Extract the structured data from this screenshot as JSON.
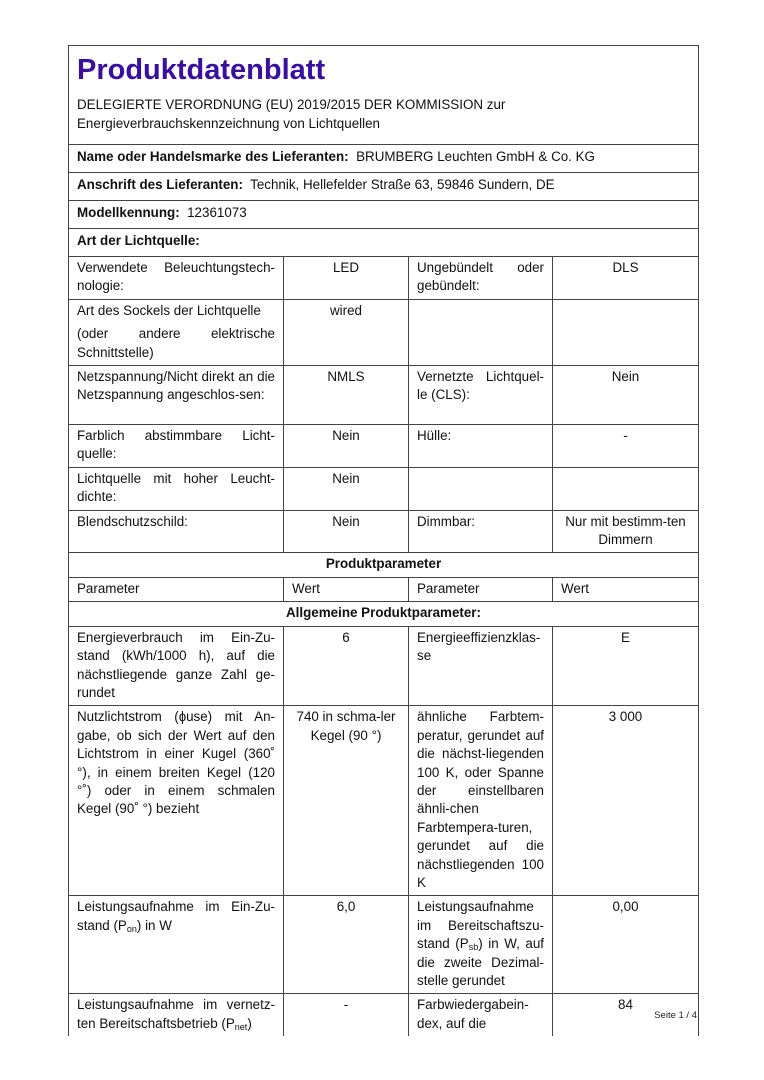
{
  "header": {
    "title": "Produktdatenblatt",
    "subtitle_line1": "DELEGIERTE VERORDNUNG (EU) 2019/2015 DER KOMMISSION zur",
    "subtitle_line2": "Energieverbrauchskennzeichnung von Lichtquellen",
    "title_color": "#3b0f9e"
  },
  "supplier": {
    "name_label": "Name oder Handelsmarke des Lieferanten:",
    "name_value": "BRUMBERG Leuchten GmbH & Co. KG",
    "address_label": "Anschrift des Lieferanten:",
    "address_value": "Technik, Hellefelder Straße 63, 59846 Sundern, DE",
    "model_label": "Modellkennung:",
    "model_value": "12361073",
    "type_label": "Art der Lichtquelle:"
  },
  "light_source": [
    {
      "l1": "Verwendete Beleuchtungstech-nologie:",
      "v1": "LED",
      "l2": "Ungebündelt oder gebündelt:",
      "v2": "DLS"
    },
    {
      "l1": "Art des Sockels der Lichtquelle",
      "l1b": "(oder andere elektrische Schnittstelle)",
      "v1": "wired",
      "l2": "",
      "v2": ""
    },
    {
      "l1": "Netzspannung/Nicht direkt an die Netzspannung angeschlos-sen:",
      "v1": "NMLS",
      "l2": "Vernetzte Lichtquel-le (CLS):",
      "v2": "Nein"
    },
    {
      "l1": "Farblich abstimmbare Licht-quelle:",
      "v1": "Nein",
      "l2": "Hülle:",
      "v2": "-"
    },
    {
      "l1": "Lichtquelle mit hoher Leucht-dichte:",
      "v1": "Nein",
      "l2": "",
      "v2": ""
    },
    {
      "l1": "Blendschutzschild:",
      "v1": "Nein",
      "l2": "Dimmbar:",
      "v2": "Nur mit bestimm-ten Dimmern"
    }
  ],
  "product_params": {
    "section_title": "Produktparameter",
    "col_headers": [
      "Parameter",
      "Wert",
      "Parameter",
      "Wert"
    ],
    "general_title": "Allgemeine Produktparameter:",
    "rows": [
      {
        "l1": "Energieverbrauch im Ein-Zu-stand (kWh/1000 h), auf die nächstliegende ganze Zahl ge-rundet",
        "v1": "6",
        "l2": "Energieeffizienzklas-se",
        "v2": "E"
      },
      {
        "l1": "Nutzlichtstrom (ɸuse) mit An-gabe, ob sich der Wert auf den Lichtstrom in einer Kugel (360˚ °), in einem breiten Kegel (120 °˚) oder in einem schmalen Kegel (90˚ °) bezieht",
        "v1": "740 in schma-ler Kegel (90 °)",
        "l2": "ähnliche Farbtem-peratur, gerundet auf die nächst-liegenden 100 K, oder Spanne der einstellbaren ähnli-chen Farbtempera-turen, gerundet auf die nächstliegenden 100 K",
        "v2": "3 000"
      },
      {
        "l1_pre": "Leistungsaufnahme im Ein-Zu-stand (P",
        "l1_sub": "on",
        "l1_post": ") in W",
        "v1": "6,0",
        "l2_pre": "Leistungsaufnahme im Bereitschaftszu-stand (P",
        "l2_sub": "sb",
        "l2_post": ") in W, auf die zweite Dezimal-stelle gerundet",
        "v2": "0,00"
      },
      {
        "l1_pre": "Leistungsaufnahme im vernetz-ten Bereitschaftsbetrieb (P",
        "l1_sub": "net",
        "l1_post": ")",
        "v1": "-",
        "l2": "Farbwiedergabein-dex, auf die",
        "v2": "84"
      }
    ]
  },
  "footer": {
    "page": "Seite 1 / 4"
  }
}
